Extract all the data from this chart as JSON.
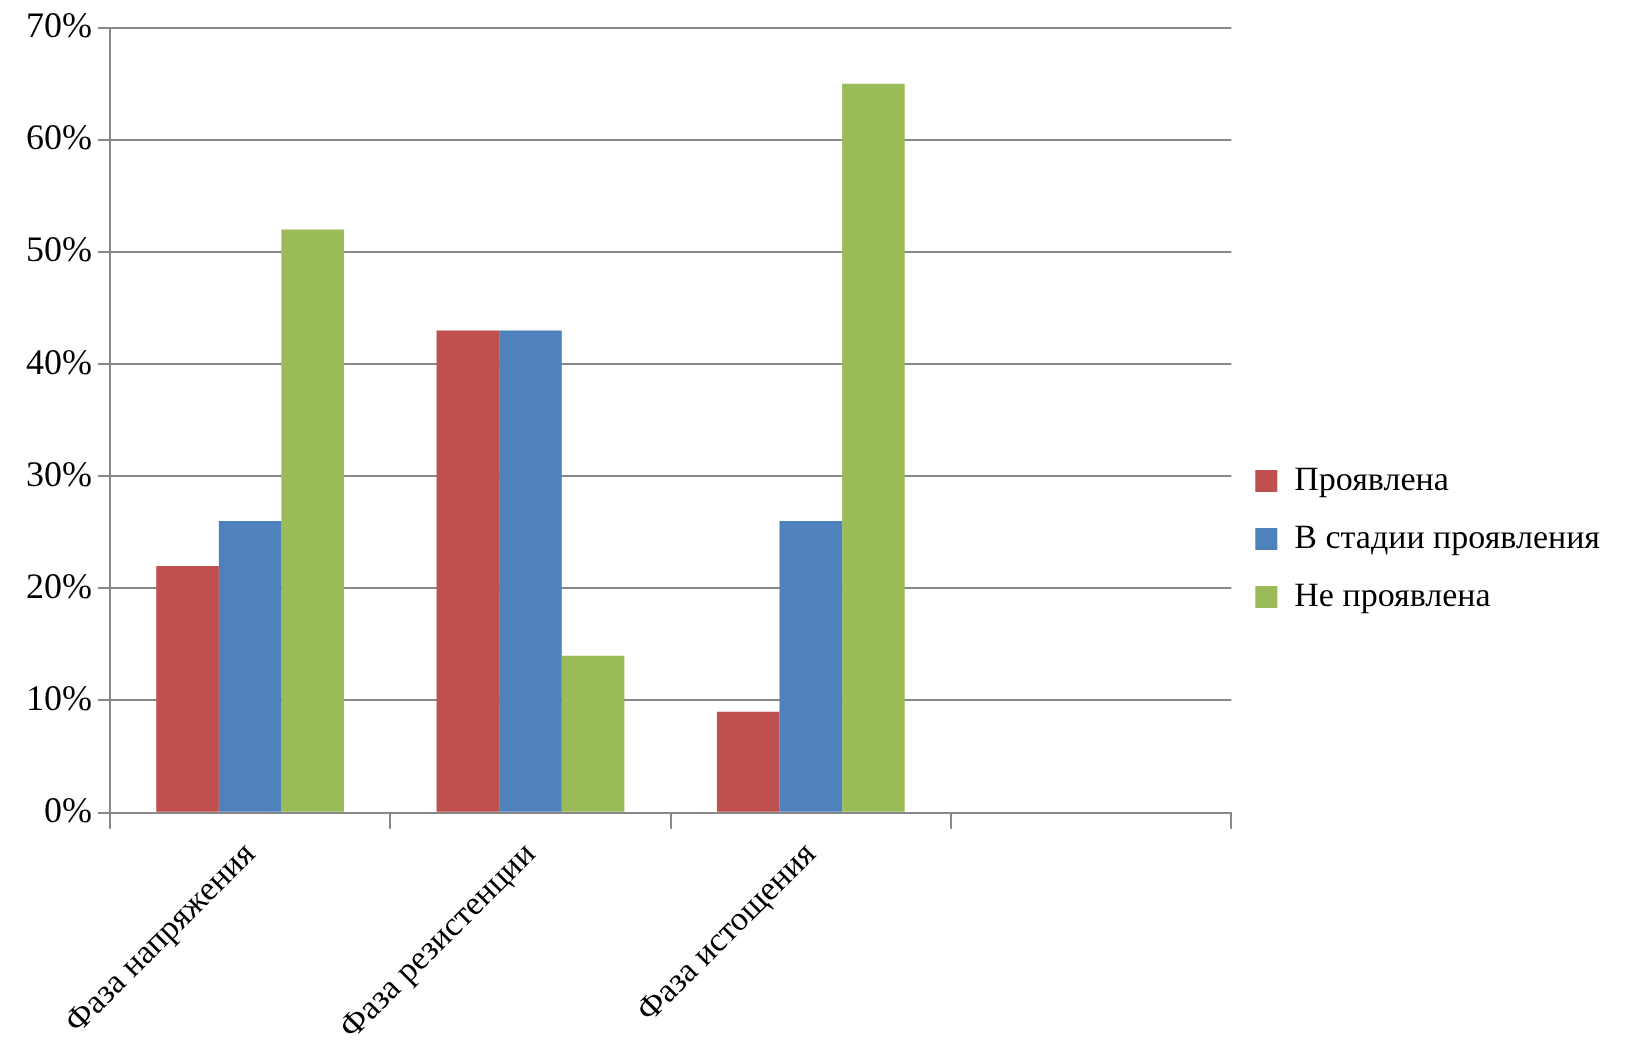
{
  "chart_data": {
    "type": "bar",
    "categories": [
      "Фаза напряжения",
      "Фаза резистенции",
      "Фаза истощения",
      null
    ],
    "series": [
      {
        "name": "Проявлена",
        "color": "#c0504d",
        "values": [
          22,
          43,
          9,
          null
        ]
      },
      {
        "name": "В стадии проявления",
        "color": "#4f81bd",
        "values": [
          26,
          43,
          26,
          null
        ]
      },
      {
        "name": "Не проявлена",
        "color": "#9bbb59",
        "values": [
          52,
          14,
          65,
          null
        ]
      }
    ],
    "ylim": [
      0,
      70
    ],
    "yticks": [
      {
        "value": 0,
        "label": "0%"
      },
      {
        "value": 10,
        "label": "10%"
      },
      {
        "value": 20,
        "label": "20%"
      },
      {
        "value": 30,
        "label": "30%"
      },
      {
        "value": 40,
        "label": "40%"
      },
      {
        "value": 50,
        "label": "50%"
      },
      {
        "value": 60,
        "label": "60%"
      },
      {
        "value": 70,
        "label": "70%"
      }
    ],
    "grid": "y",
    "legend": "right"
  }
}
